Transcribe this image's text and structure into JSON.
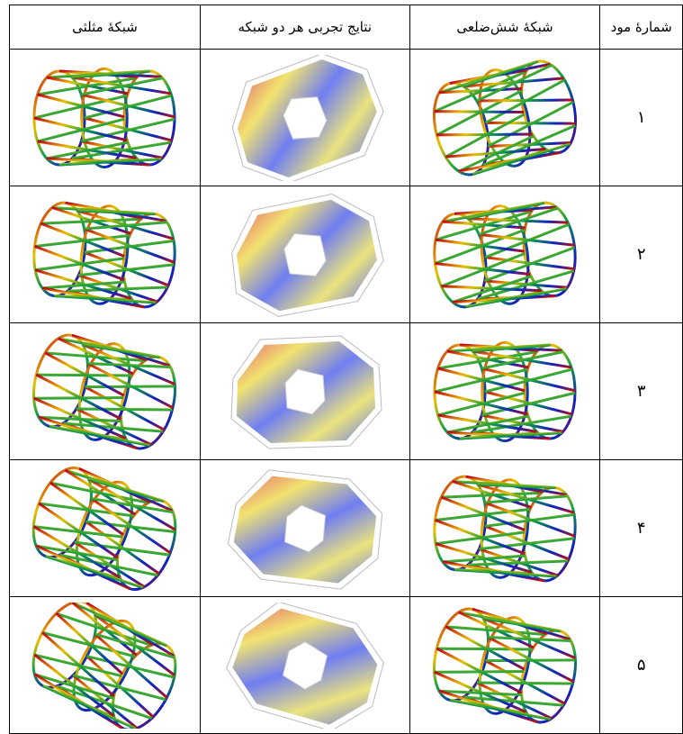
{
  "table": {
    "header": [
      "شمارهٔ مود",
      "شبکهٔ شش‌ضلعی",
      "نتایج تجربی هر دو شبکه",
      "شبکهٔ مثلثی"
    ],
    "rows": [
      [
        "۱"
      ],
      [
        "۲"
      ],
      [
        "۳"
      ],
      [
        "۴"
      ],
      [
        "۵"
      ]
    ]
  }
}
